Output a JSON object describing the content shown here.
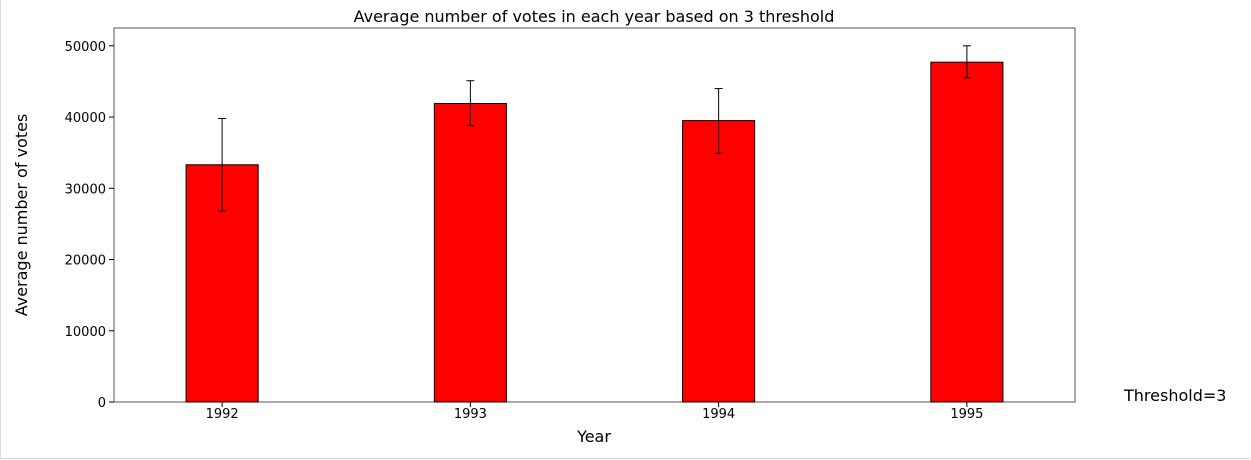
{
  "chart_data": {
    "type": "bar",
    "title": "Average number of votes in each year based on 3 threshold",
    "xlabel": "Year",
    "ylabel": "Average number of votes",
    "categories": [
      "1992",
      "1993",
      "1994",
      "1995"
    ],
    "values": [
      33300,
      41900,
      39500,
      47700
    ],
    "errors": [
      [
        26800,
        39800
      ],
      [
        38800,
        45100
      ],
      [
        34900,
        44000
      ],
      [
        45500,
        50000
      ]
    ],
    "ylim": [
      0,
      52500
    ],
    "yticks": [
      0,
      10000,
      20000,
      30000,
      40000,
      50000
    ],
    "grid": false,
    "bar_color": "#ff0000",
    "bar_edge_color": "#000000",
    "annotation": "Threshold=3"
  }
}
